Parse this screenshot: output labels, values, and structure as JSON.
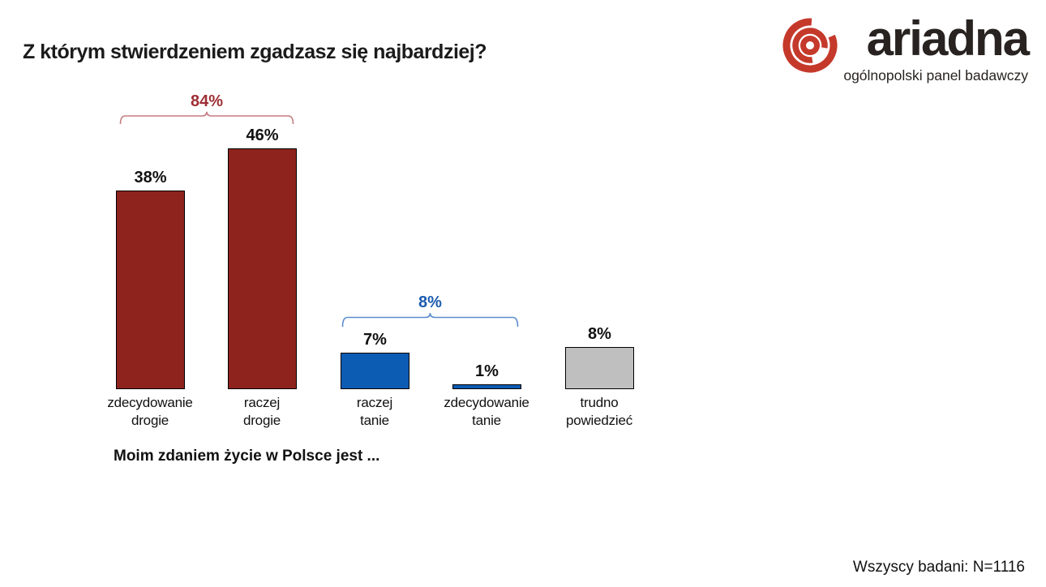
{
  "title": "Z którym stwierdzeniem zgadzasz się najbardziej?",
  "logo": {
    "name": "ariadna",
    "tagline": "ogólnopolski panel badawczy",
    "brand_red": "#C5392B",
    "brand_dark": "#282320"
  },
  "chart_data": {
    "type": "bar",
    "title": "Z którym stwierdzeniem zgadzasz się najbardziej?",
    "categories": [
      "zdecydowanie drogie",
      "raczej drogie",
      "raczej tanie",
      "zdecydowanie tanie",
      "trudno powiedzieć"
    ],
    "categories_lines": [
      [
        "zdecydowanie",
        "drogie"
      ],
      [
        "raczej",
        "drogie"
      ],
      [
        "raczej",
        "tanie"
      ],
      [
        "zdecydowanie",
        "tanie"
      ],
      [
        "trudno",
        "powiedzieć"
      ]
    ],
    "values": [
      38,
      46,
      7,
      1,
      8
    ],
    "value_labels": [
      "38%",
      "46%",
      "7%",
      "1%",
      "8%"
    ],
    "bar_colors": [
      "#8E231D",
      "#8E231D",
      "#0C5CB4",
      "#0C5CB4",
      "#BFBFBF"
    ],
    "bar_border_color": "#000000",
    "groups": [
      {
        "label": "84%",
        "categories": [
          "zdecydowanie drogie",
          "raczej drogie"
        ],
        "text_color": "#9E2F35",
        "line_color": "#C57D82"
      },
      {
        "label": "8%",
        "categories": [
          "raczej tanie",
          "zdecydowanie tanie"
        ],
        "text_color": "#1B5CAF",
        "line_color": "#5B8DCD"
      }
    ],
    "xlabel": "Moim zdaniem życie w Polsce jest ...",
    "ylabel": "",
    "ylim": [
      0,
      50
    ],
    "grid": false,
    "legend": false
  },
  "footer": {
    "note": "Wszyscy badani: N=1116"
  }
}
